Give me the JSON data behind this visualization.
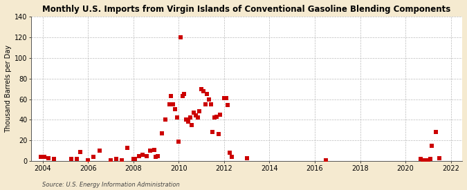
{
  "title": "Monthly U.S. Imports from Virgin Islands of Conventional Gasoline Blending Components",
  "ylabel": "Thousand Barrels per Day",
  "source": "Source: U.S. Energy Information Administration",
  "background_color": "#f5ead0",
  "plot_bg_color": "#ffffff",
  "marker_color": "#cc0000",
  "marker_size": 14,
  "ylim": [
    0,
    140
  ],
  "yticks": [
    0,
    20,
    40,
    60,
    80,
    100,
    120,
    140
  ],
  "xlim": [
    2003.5,
    2022.5
  ],
  "xticks": [
    2004,
    2006,
    2008,
    2010,
    2012,
    2014,
    2016,
    2018,
    2020,
    2022
  ],
  "data_x": [
    2003.917,
    2004.083,
    2004.25,
    2004.5,
    2005.25,
    2005.5,
    2005.667,
    2006.0,
    2006.25,
    2006.5,
    2007.0,
    2007.25,
    2007.5,
    2007.75,
    2008.0,
    2008.083,
    2008.25,
    2008.417,
    2008.583,
    2008.75,
    2008.917,
    2009.0,
    2009.083,
    2009.25,
    2009.417,
    2009.583,
    2009.667,
    2009.75,
    2009.833,
    2009.917,
    2010.0,
    2010.083,
    2010.167,
    2010.25,
    2010.333,
    2010.417,
    2010.5,
    2010.583,
    2010.667,
    2010.75,
    2010.833,
    2010.917,
    2011.0,
    2011.083,
    2011.167,
    2011.25,
    2011.333,
    2011.417,
    2011.5,
    2011.583,
    2011.667,
    2011.75,
    2011.833,
    2012.0,
    2012.083,
    2012.167,
    2012.25,
    2012.333,
    2013.0,
    2016.5,
    2020.667,
    2020.75,
    2020.833,
    2020.917,
    2021.0,
    2021.083,
    2021.167,
    2021.333,
    2021.5
  ],
  "data_y": [
    4,
    4,
    3,
    2,
    2,
    2,
    9,
    1,
    4,
    10,
    1,
    2,
    1,
    13,
    2,
    2,
    5,
    6,
    5,
    10,
    11,
    4,
    5,
    27,
    40,
    55,
    63,
    55,
    50,
    42,
    19,
    120,
    63,
    65,
    40,
    38,
    42,
    35,
    47,
    44,
    42,
    48,
    70,
    68,
    55,
    65,
    60,
    55,
    28,
    42,
    43,
    26,
    45,
    61,
    61,
    54,
    8,
    4,
    3,
    1,
    2,
    1,
    1,
    1,
    1,
    2,
    15,
    28,
    3
  ]
}
